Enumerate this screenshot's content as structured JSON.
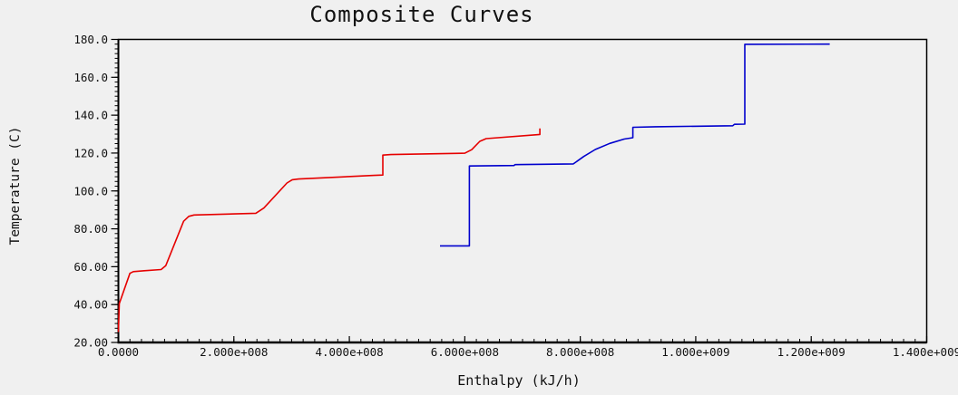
{
  "window": {
    "background_color": "#f0f0f0",
    "axis_color": "#000000"
  },
  "chart_data": {
    "type": "line",
    "title": "Composite Curves",
    "xlabel": "Enthalpy (kJ/h)",
    "ylabel": "Temperature (C)",
    "xlim": [
      0,
      1400000000
    ],
    "ylim": [
      20,
      180
    ],
    "grid": false,
    "legend": "none",
    "x_minor_step": 20000000,
    "y_minor_step": 2.5,
    "x_ticks": [
      {
        "v": 0,
        "label": "0.0000"
      },
      {
        "v": 200000000,
        "label": "2.000e+008"
      },
      {
        "v": 400000000,
        "label": "4.000e+008"
      },
      {
        "v": 600000000,
        "label": "6.000e+008"
      },
      {
        "v": 800000000,
        "label": "8.000e+008"
      },
      {
        "v": 1000000000,
        "label": "1.000e+009"
      },
      {
        "v": 1200000000,
        "label": "1.200e+009"
      },
      {
        "v": 1400000000,
        "label": "1.400e+009"
      }
    ],
    "y_ticks": [
      {
        "v": 20,
        "label": "20.00"
      },
      {
        "v": 40,
        "label": "40.00"
      },
      {
        "v": 60,
        "label": "60.00"
      },
      {
        "v": 80,
        "label": "80.00"
      },
      {
        "v": 100,
        "label": "100.0"
      },
      {
        "v": 120,
        "label": "120.0"
      },
      {
        "v": 140,
        "label": "140.0"
      },
      {
        "v": 160,
        "label": "160.0"
      },
      {
        "v": 180,
        "label": "180.0"
      }
    ],
    "series": [
      {
        "name": "cold-composite",
        "color": "#e60000",
        "points": [
          [
            0,
            25.5
          ],
          [
            1500000,
            40.5
          ],
          [
            20000000,
            56.5
          ],
          [
            26000000,
            57.4
          ],
          [
            45000000,
            57.9
          ],
          [
            74000000,
            58.5
          ],
          [
            82000000,
            60.5
          ],
          [
            113000000,
            84.0
          ],
          [
            122000000,
            86.6
          ],
          [
            131000000,
            87.3
          ],
          [
            238000000,
            88.2
          ],
          [
            252000000,
            91.0
          ],
          [
            292000000,
            104.2
          ],
          [
            301000000,
            105.9
          ],
          [
            312000000,
            106.3
          ],
          [
            443000000,
            108.2
          ],
          [
            458000000,
            108.4
          ],
          [
            458000000,
            118.9
          ],
          [
            472000000,
            119.2
          ],
          [
            600000000,
            119.9
          ],
          [
            612000000,
            121.8
          ],
          [
            626000000,
            126.2
          ],
          [
            637000000,
            127.6
          ],
          [
            725000000,
            129.7
          ],
          [
            730000000,
            129.8
          ],
          [
            730000000,
            133.0
          ]
        ]
      },
      {
        "name": "hot-composite",
        "color": "#0000cd",
        "points": [
          [
            557000000,
            71.0
          ],
          [
            608000000,
            71.0
          ],
          [
            608000000,
            113.2
          ],
          [
            685000000,
            113.4
          ],
          [
            687000000,
            113.9
          ],
          [
            788000000,
            114.3
          ],
          [
            806000000,
            118.2
          ],
          [
            826000000,
            121.9
          ],
          [
            851000000,
            125.1
          ],
          [
            876000000,
            127.4
          ],
          [
            891000000,
            128.1
          ],
          [
            891000000,
            133.6
          ],
          [
            930000000,
            133.9
          ],
          [
            1064000000,
            134.4
          ],
          [
            1067000000,
            135.2
          ],
          [
            1085000000,
            135.3
          ],
          [
            1085000000,
            177.4
          ],
          [
            1232000000,
            177.5
          ]
        ]
      }
    ]
  }
}
